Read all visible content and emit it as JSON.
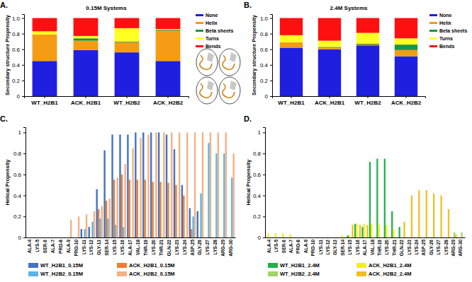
{
  "chart_data": [
    {
      "type": "bar",
      "stacked": true,
      "legend": "right",
      "title": "0.15M Systems",
      "annotations": [
        "A."
      ],
      "y_label": "Secondary structure Propensity",
      "categories": [
        "WT_H2B1",
        "ACK_H2B1",
        "WT_H2B2",
        "ACK_H2B2"
      ],
      "ylim": [
        0,
        1.05
      ],
      "yticks": [
        0,
        0.2,
        0.4,
        0.6,
        0.8,
        {
          "value": 1,
          "label": "1.0"
        }
      ],
      "series": [
        {
          "name": "None",
          "color": "#1f1fe0",
          "values": [
            0.45,
            0.59,
            0.56,
            0.45
          ]
        },
        {
          "name": "Helix",
          "color": "#f59b14",
          "values": [
            0.34,
            0.12,
            0.13,
            0.39
          ]
        },
        {
          "name": "Beta sheets",
          "color": "#1a9641",
          "values": [
            0,
            0.03,
            0.01,
            0.01
          ]
        },
        {
          "name": "Turns",
          "color": "#ffff22",
          "values": [
            0.04,
            0.03,
            0.17,
            0.01
          ]
        },
        {
          "name": "Bends",
          "color": "#ff1010",
          "values": [
            0.17,
            0.23,
            0.13,
            0.14
          ]
        }
      ]
    },
    {
      "type": "bar",
      "stacked": true,
      "legend": "right",
      "title": "2.4M Systems",
      "annotations": [
        "B."
      ],
      "y_label": "Secondary structure Propensity",
      "categories": [
        "WT_H2B1",
        "ACK_H2B1",
        "WT_H2B2",
        "ACK_H2B2"
      ],
      "ylim": [
        0,
        1.05
      ],
      "yticks": [
        0,
        0.2,
        0.4,
        0.6,
        0.8,
        {
          "value": 1,
          "label": "1.0"
        }
      ],
      "series": [
        {
          "name": "None",
          "color": "#1f1fe0",
          "values": [
            0.62,
            0.6,
            0.65,
            0.51
          ]
        },
        {
          "name": "Helix",
          "color": "#f59b14",
          "values": [
            0.07,
            0.02,
            0.01,
            0.08
          ]
        },
        {
          "name": "Beta sheets",
          "color": "#1a9641",
          "values": [
            0,
            0.01,
            0.01,
            0.07
          ]
        },
        {
          "name": "Turns",
          "color": "#ffff22",
          "values": [
            0.09,
            0.08,
            0.14,
            0.08
          ]
        },
        {
          "name": "Bends",
          "color": "#ff1010",
          "values": [
            0.22,
            0.29,
            0.19,
            0.26
          ]
        }
      ]
    },
    {
      "type": "bar",
      "legend": "bottom",
      "annotations": [
        "C."
      ],
      "y_label": "Helical Propensity",
      "categories": [
        "ALA-4",
        "LYS-5",
        "SER-6",
        "ALA-7",
        "PRO-8",
        "ALA-9",
        "PRO-10",
        "LYS-11",
        "LYS-12",
        "GLY-13",
        "SER-14",
        "LYS-15",
        "LYS-16",
        "ALA-17",
        "VAL-18",
        "THR-19",
        "LYS-20",
        "THR-21",
        "GLN-22",
        "LYS-23",
        "LYS-24",
        "ASP-25",
        "GLY-26",
        "LYS-27",
        "LYS-28",
        "ARG-29",
        "ARG-30"
      ],
      "ylim": [
        0,
        1.05
      ],
      "yticks": [
        0,
        0.2,
        0.4,
        0.6,
        0.8,
        1
      ],
      "series": [
        {
          "name": "WT_H2B1_0.15M",
          "color": "#4472c4",
          "values": [
            0,
            0,
            0,
            0,
            0,
            0,
            0,
            0.08,
            0.1,
            0.46,
            0.83,
            0.98,
            0.98,
            0.98,
            1,
            1,
            1,
            1,
            0.98,
            0.84,
            0.5,
            0.28,
            0.25,
            0,
            0,
            0,
            0
          ]
        },
        {
          "name": "ACK_H2B1_0.15M",
          "color": "#ed7d31",
          "values": [
            0,
            0,
            0,
            0,
            0,
            0,
            0,
            0,
            0,
            0.27,
            0.35,
            0.55,
            0.6,
            0.55,
            0.55,
            0.55,
            0.53,
            0.53,
            0.52,
            0.5,
            0.4,
            0.08,
            0,
            0,
            0,
            0,
            0
          ]
        },
        {
          "name": "WT_H2B2_0.15M",
          "color": "#5ab4e5",
          "values": [
            0,
            0,
            0,
            0,
            0,
            0,
            0,
            0.08,
            0.15,
            0.18,
            0.18,
            0.12,
            0.1,
            0,
            0,
            0,
            0,
            0,
            0,
            0,
            0,
            0.2,
            0.42,
            0.9,
            0.8,
            0.8,
            0.57
          ]
        },
        {
          "name": "ACK_H2B2_0.15M",
          "color": "#f4b183",
          "values": [
            0,
            0,
            0,
            0,
            0,
            0.17,
            0.2,
            0.22,
            0.25,
            0.3,
            0.37,
            0.57,
            0.7,
            0.85,
            0.95,
            0.98,
            1,
            1,
            1,
            1,
            1,
            1,
            1,
            1,
            1,
            1,
            0.8
          ]
        }
      ]
    },
    {
      "type": "bar",
      "legend": "bottom",
      "annotations": [
        "D."
      ],
      "y_label": "Helical Propensity",
      "categories": [
        "ALA-4",
        "LYS-5",
        "SER-6",
        "ALA-7",
        "PRO-8",
        "ALA-9",
        "PRO-10",
        "LYS-11",
        "LYS-12",
        "GLY-13",
        "SER-14",
        "LYS-15",
        "LYS-16",
        "ALA-17",
        "VAL-18",
        "THR-19",
        "LYS-20",
        "THR-21",
        "GLN-22",
        "LYS-23",
        "LYS-24",
        "ASP-25",
        "GLY-26",
        "LYS-27",
        "LYS-28",
        "ARG-29",
        "ARG-30"
      ],
      "ylim": [
        0,
        1.05
      ],
      "yticks": [
        0,
        0.2,
        0.4,
        0.6,
        0.8,
        1
      ],
      "series": [
        {
          "name": "WT_H2B1_2.4M",
          "color": "#22b14c",
          "values": [
            0,
            0,
            0,
            0,
            0,
            0,
            0,
            0,
            0,
            0,
            0,
            0.02,
            0.13,
            0.1,
            0.72,
            0.75,
            0.75,
            0.25,
            0.1,
            0,
            0,
            0,
            0,
            0,
            0,
            0,
            0
          ]
        },
        {
          "name": "ACK_H2B1_2.4M",
          "color": "#f2f20d",
          "values": [
            0.04,
            0.04,
            0.04,
            0.03,
            0,
            0,
            0,
            0,
            0,
            0,
            0.02,
            0.02,
            0.13,
            0.13,
            0.13,
            0.12,
            0.12,
            0.08,
            0,
            0,
            0,
            0,
            0,
            0,
            0,
            0,
            0
          ]
        },
        {
          "name": "WT_H2B2_2.4M",
          "color": "#a0d468",
          "values": [
            0,
            0,
            0,
            0,
            0,
            0,
            0,
            0,
            0,
            0,
            0,
            0,
            0,
            0,
            0,
            0,
            0,
            0,
            0,
            0,
            0,
            0,
            0,
            0,
            0,
            0.05,
            0.05
          ]
        },
        {
          "name": "ACK_H2B2_2.4M",
          "color": "#f0c020",
          "values": [
            0,
            0,
            0,
            0,
            0,
            0,
            0,
            0,
            0,
            0,
            0,
            0.12,
            0.12,
            0.12,
            0,
            0,
            0,
            0,
            0.15,
            0.4,
            0.45,
            0.45,
            0.42,
            0.4,
            0.27,
            0.03,
            0
          ]
        }
      ]
    }
  ]
}
